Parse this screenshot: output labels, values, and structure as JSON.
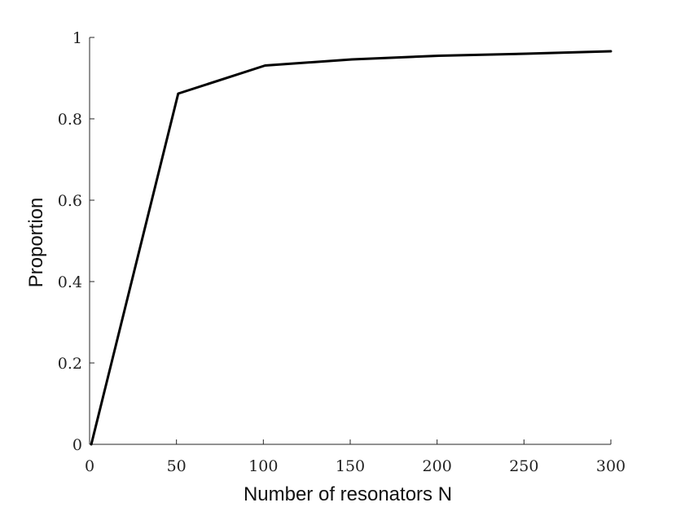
{
  "chart_data": {
    "type": "line",
    "title": "",
    "xlabel": "Number of resonators N",
    "ylabel": "Proportion",
    "xlim": [
      0,
      300
    ],
    "ylim": [
      0,
      1
    ],
    "xticks": [
      0,
      50,
      100,
      150,
      200,
      250,
      300
    ],
    "xtick_labels": [
      "0",
      "50",
      "100",
      "150",
      "200",
      "250",
      "300"
    ],
    "yticks": [
      0,
      0.2,
      0.4,
      0.6,
      0.8,
      1
    ],
    "ytick_labels": [
      "0",
      "0.2",
      "0.4",
      "0.6",
      "0.8",
      "1"
    ],
    "grid": false,
    "legend": false,
    "series": [
      {
        "color": "#000000",
        "x": [
          1,
          51,
          101,
          151,
          201,
          251,
          300
        ],
        "y": [
          0,
          0.862,
          0.931,
          0.946,
          0.955,
          0.96,
          0.966
        ]
      }
    ]
  }
}
